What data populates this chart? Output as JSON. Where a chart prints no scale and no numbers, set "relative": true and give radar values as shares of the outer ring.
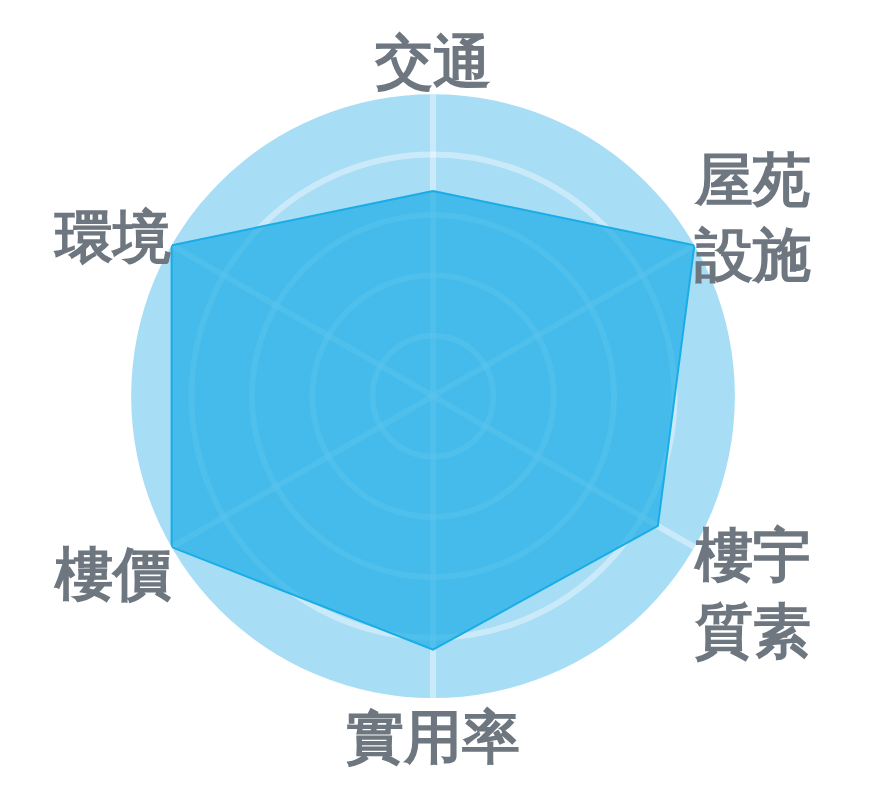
{
  "chart_data": {
    "type": "radar",
    "categories": [
      "交通",
      "屋苑設施",
      "樓宇質素",
      "實用率",
      "樓價",
      "環境"
    ],
    "relative": true,
    "grid": true,
    "series": [
      {
        "color": "#1aace6",
        "values": [
          0.68,
          1.0,
          0.86,
          0.84,
          1.0,
          1.0
        ]
      }
    ]
  }
}
